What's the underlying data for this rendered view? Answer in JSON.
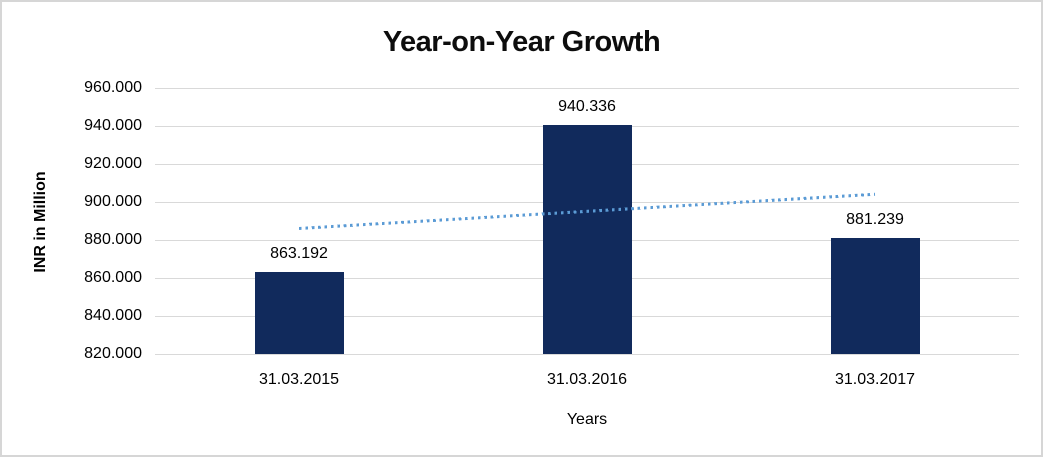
{
  "page": {
    "background": "#ffffff",
    "frame_border_color": "#d6d6d6"
  },
  "chart_data": {
    "type": "bar",
    "title": "Year-on-Year Growth",
    "xlabel": "Years",
    "ylabel": "INR in Million",
    "categories": [
      "31.03.2015",
      "31.03.2016",
      "31.03.2017"
    ],
    "values": [
      863.192,
      940.336,
      881.239
    ],
    "data_labels": [
      "863.192",
      "940.336",
      "881.239"
    ],
    "ylim": [
      820,
      960
    ],
    "ytick_step": 20,
    "ytick_labels": [
      "820.000",
      "840.000",
      "860.000",
      "880.000",
      "900.000",
      "920.000",
      "940.000",
      "960.000"
    ],
    "grid": "horizontal gridlines on, no vertical gridlines",
    "legend": "none",
    "colors": {
      "bar": "#112a5c",
      "gridline": "#d9d9d9",
      "axis_line": "#d9d9d9",
      "text": "#000000",
      "title": "#0d0d0d",
      "trendline": "#5b9bd5"
    },
    "trendline": {
      "type": "linear",
      "style": "dotted",
      "color": "#5b9bd5",
      "values": [
        885.899,
        894.922,
        903.946
      ]
    }
  }
}
